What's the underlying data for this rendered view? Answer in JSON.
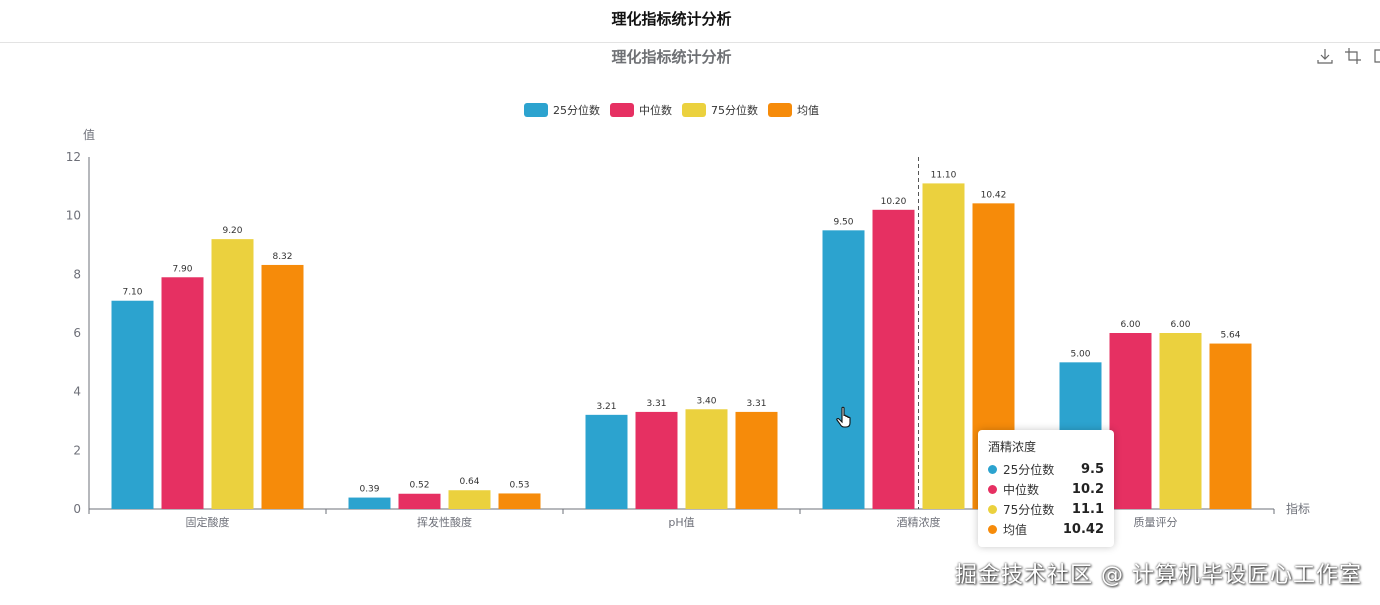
{
  "page": {
    "title": "理化指标统计分析"
  },
  "toolbox": {
    "icons": [
      "download-icon",
      "crop-icon",
      "restore-icon"
    ]
  },
  "chart_data": {
    "type": "bar",
    "title": "理化指标统计分析",
    "xlabel": "指标",
    "ylabel": "值",
    "ylim": [
      0,
      12
    ],
    "yticks": [
      0,
      2,
      4,
      6,
      8,
      10,
      12
    ],
    "grid": false,
    "legend_position": "top",
    "categories": [
      "固定酸度",
      "挥发性酸度",
      "pH值",
      "酒精浓度",
      "质量评分"
    ],
    "series": [
      {
        "name": "25分位数",
        "color": "#2ca3cf",
        "values": [
          7.1,
          0.39,
          3.21,
          9.5,
          5.0
        ]
      },
      {
        "name": "中位数",
        "color": "#e63062",
        "values": [
          7.9,
          0.52,
          3.31,
          10.2,
          6.0
        ]
      },
      {
        "name": "75分位数",
        "color": "#ebd13e",
        "values": [
          9.2,
          0.64,
          3.4,
          11.1,
          6.0
        ]
      },
      {
        "name": "均值",
        "color": "#f68b0a",
        "values": [
          8.32,
          0.53,
          3.31,
          10.42,
          5.64
        ]
      }
    ],
    "data_labels": [
      [
        "7.10",
        "0.39",
        "3.21",
        "9.50",
        "5.00"
      ],
      [
        "7.90",
        "0.52",
        "3.31",
        "10.20",
        "6.00"
      ],
      [
        "9.20",
        "0.64",
        "3.40",
        "11.10",
        "6.00"
      ],
      [
        "8.32",
        "0.53",
        "3.31",
        "10.42",
        "5.64"
      ]
    ]
  },
  "tooltip": {
    "title": "酒精浓度",
    "rows": [
      {
        "name": "25分位数",
        "value": "9.5",
        "color": "#2ca3cf"
      },
      {
        "name": "中位数",
        "value": "10.2",
        "color": "#e63062"
      },
      {
        "name": "75分位数",
        "value": "11.1",
        "color": "#ebd13e"
      },
      {
        "name": "均值",
        "value": "10.42",
        "color": "#f68b0a"
      }
    ]
  },
  "watermark": "掘金技术社区 @ 计算机毕设匠心工作室"
}
